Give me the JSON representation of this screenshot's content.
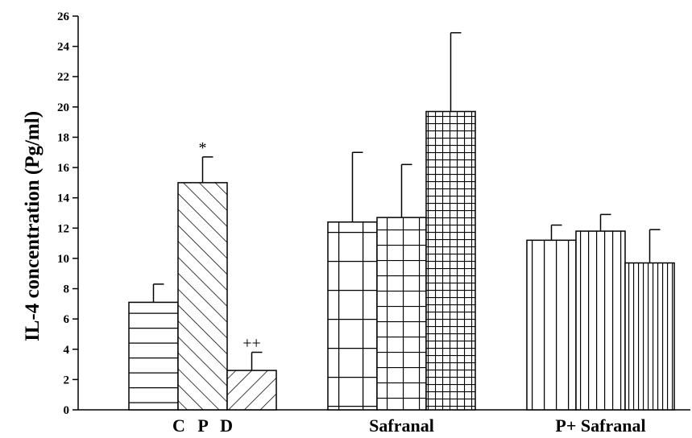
{
  "chart_data": {
    "type": "bar",
    "title": "",
    "xlabel": "",
    "ylabel": "IL-4 concentration (Pg/ml)",
    "ylim": [
      0,
      26
    ],
    "yticks": [
      "0",
      "2",
      "4",
      "6",
      "8",
      "10",
      "12",
      "14",
      "16",
      "18",
      "20",
      "22",
      "24",
      "26"
    ],
    "grid": false,
    "legend": "none",
    "groups": [
      {
        "label": "C P D",
        "bars": [
          {
            "value": 7.1,
            "error": 1.2,
            "pattern": "horizontal",
            "annotation": ""
          },
          {
            "value": 15.0,
            "error": 1.7,
            "pattern": "diagonal-right",
            "annotation": "*"
          },
          {
            "value": 2.6,
            "error": 1.2,
            "pattern": "diagonal-left",
            "annotation": "++"
          }
        ]
      },
      {
        "label": "Safranal",
        "bars": [
          {
            "value": 12.4,
            "error": 4.6,
            "pattern": "grid-large",
            "annotation": ""
          },
          {
            "value": 12.7,
            "error": 3.5,
            "pattern": "grid-medium",
            "annotation": ""
          },
          {
            "value": 19.7,
            "error": 5.2,
            "pattern": "grid-small",
            "annotation": ""
          }
        ]
      },
      {
        "label": "P+ Safranal",
        "bars": [
          {
            "value": 11.2,
            "error": 1.0,
            "pattern": "vertical-wide",
            "annotation": ""
          },
          {
            "value": 11.8,
            "error": 1.1,
            "pattern": "vertical-medium",
            "annotation": ""
          },
          {
            "value": 9.7,
            "error": 2.2,
            "pattern": "vertical-narrow",
            "annotation": ""
          }
        ]
      }
    ],
    "colors": {
      "bar_fill": "#ffffff",
      "stroke": "#000000"
    }
  }
}
